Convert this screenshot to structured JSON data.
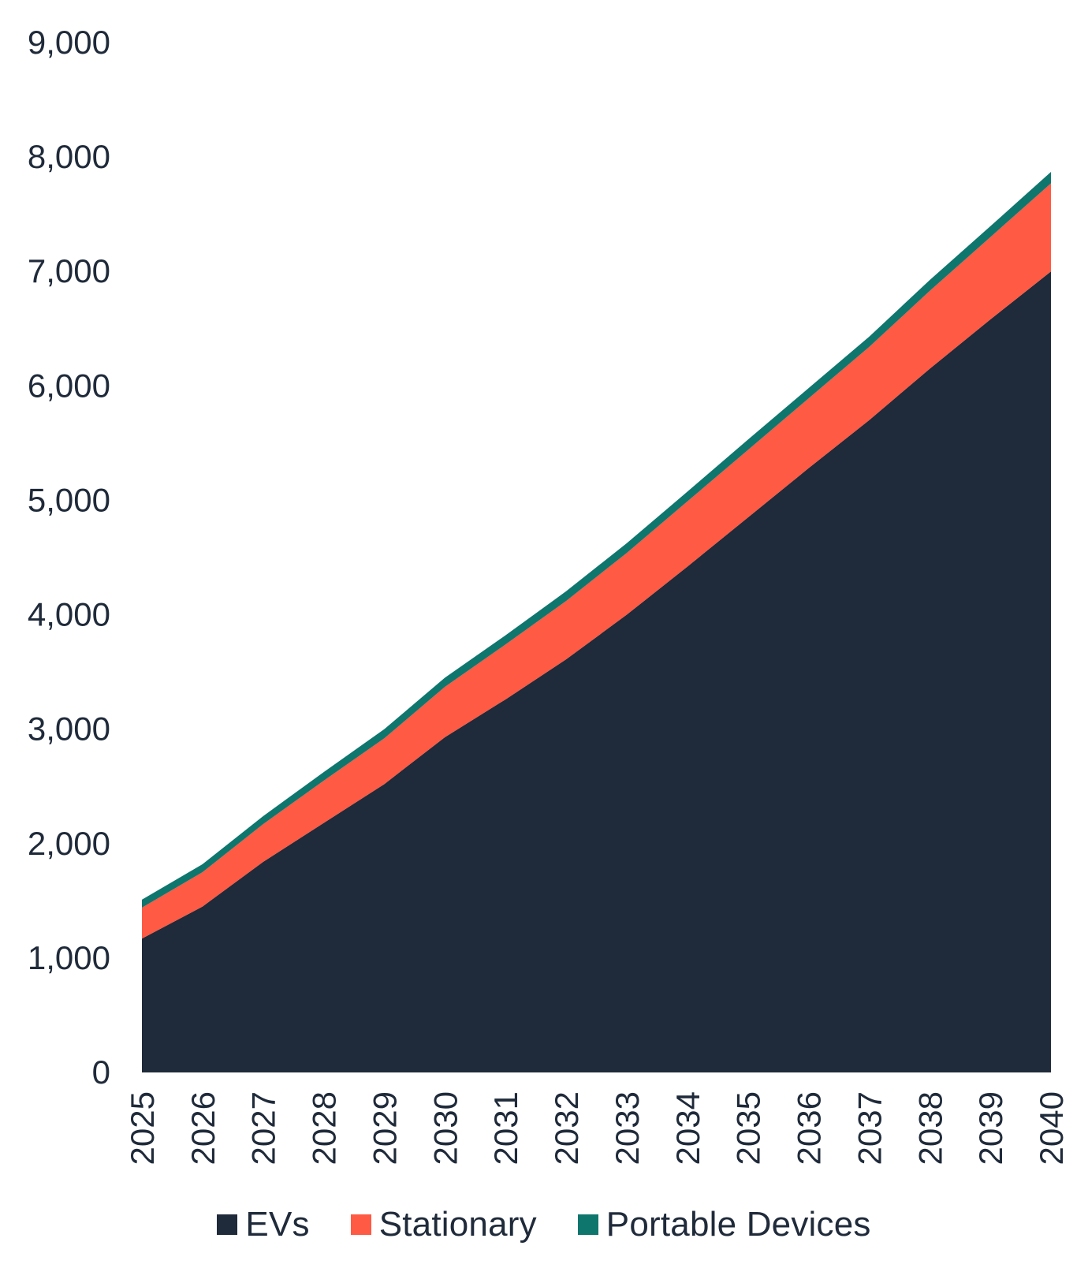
{
  "chart_data": {
    "type": "area",
    "stacked": true,
    "title": "",
    "xlabel": "",
    "ylabel": "",
    "ylim": [
      0,
      9000
    ],
    "yticks": [
      "0",
      "1,000",
      "2,000",
      "3,000",
      "4,000",
      "5,000",
      "6,000",
      "7,000",
      "8,000",
      "9,000"
    ],
    "ytick_values": [
      0,
      1000,
      2000,
      3000,
      4000,
      5000,
      6000,
      7000,
      8000,
      9000
    ],
    "x": [
      "2025",
      "2026",
      "2027",
      "2028",
      "2029",
      "2030",
      "2031",
      "2032",
      "2033",
      "2034",
      "2035",
      "2036",
      "2037",
      "2038",
      "2039",
      "2040"
    ],
    "grid": false,
    "legend_position": "bottom",
    "series": [
      {
        "name": "EVs",
        "color": "#1f2a3a",
        "values": [
          1170,
          1450,
          1840,
          2180,
          2520,
          2930,
          3260,
          3610,
          4000,
          4420,
          4850,
          5280,
          5700,
          6150,
          6580,
          7000
        ]
      },
      {
        "name": "Stationary",
        "color": "#ff5a43",
        "values": [
          270,
          300,
          330,
          370,
          400,
          440,
          480,
          510,
          540,
          570,
          590,
          610,
          640,
          680,
          720,
          770
        ]
      },
      {
        "name": "Portable Devices",
        "color": "#0f766e",
        "values": [
          70,
          70,
          70,
          75,
          80,
          80,
          80,
          85,
          85,
          85,
          90,
          90,
          90,
          95,
          95,
          100
        ]
      }
    ]
  }
}
